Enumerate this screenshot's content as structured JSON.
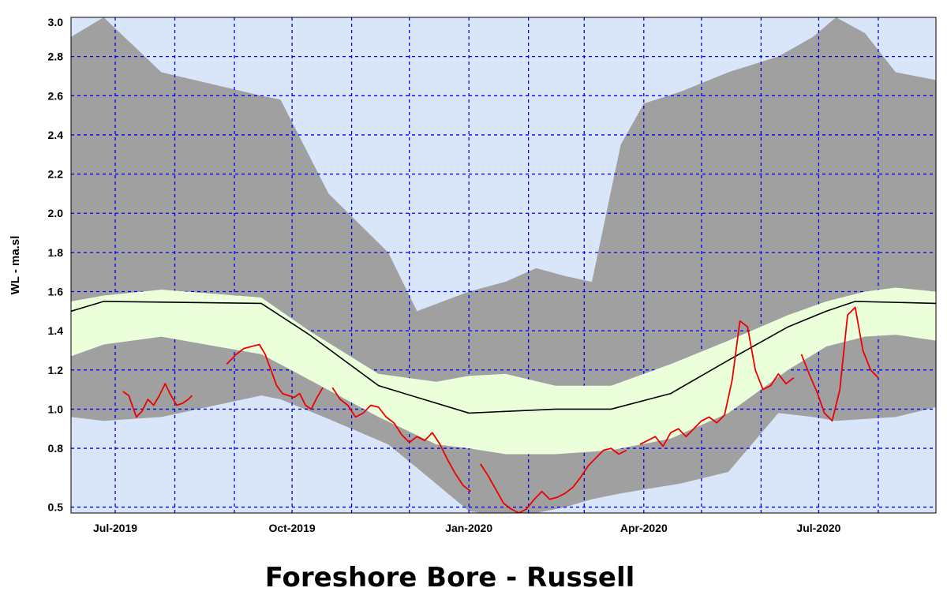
{
  "chart_data": {
    "type": "area",
    "title": "Foreshore Bore - Russell",
    "xlabel": "",
    "ylabel": "WL - ma.sl",
    "x_axis": {
      "type": "date",
      "min": "2019-06-08",
      "max": "2020-08-31",
      "tick_labels": [
        {
          "date": "2019-07-01",
          "label": "Jul-2019"
        },
        {
          "date": "2019-10-01",
          "label": "Oct-2019"
        },
        {
          "date": "2020-01-01",
          "label": "Jan-2020"
        },
        {
          "date": "2020-04-01",
          "label": "Apr-2020"
        },
        {
          "date": "2020-07-01",
          "label": "Jul-2020"
        }
      ],
      "grid_dates": [
        "2019-07-01",
        "2019-08-01",
        "2019-09-01",
        "2019-10-01",
        "2019-11-01",
        "2019-12-01",
        "2020-01-01",
        "2020-02-01",
        "2020-03-01",
        "2020-04-01",
        "2020-05-01",
        "2020-06-01",
        "2020-07-01",
        "2020-08-01"
      ]
    },
    "y_axis": {
      "min": 0.47,
      "max": 3.0,
      "ticks": [
        0.5,
        0.8,
        1.0,
        1.2,
        1.4,
        1.6,
        1.8,
        2.0,
        2.2,
        2.4,
        2.6,
        2.8,
        3.0
      ],
      "tick_labels": [
        "0.5",
        "0.8",
        "1.0",
        "1.2",
        "1.4",
        "1.6",
        "1.8",
        "2.0",
        "2.2",
        "2.4",
        "2.6",
        "2.8",
        "3.0"
      ],
      "grid": true
    },
    "colors": {
      "plot_background": "#d9e6fa",
      "grid": "#0000ee",
      "outer_band": "#a0a0a0",
      "inner_band": "#eaffda",
      "median_line": "#000000",
      "observed_line": "#ee0000"
    },
    "outer_band": {
      "dates": [
        "2019-06-08",
        "2019-06-25",
        "2019-07-25",
        "2019-09-15",
        "2019-09-25",
        "2019-10-20",
        "2019-11-20",
        "2019-12-05",
        "2020-01-01",
        "2020-01-20",
        "2020-02-05",
        "2020-02-20",
        "2020-03-05",
        "2020-03-20",
        "2020-04-01",
        "2020-04-20",
        "2020-05-15",
        "2020-06-10",
        "2020-06-28",
        "2020-07-10",
        "2020-07-25",
        "2020-08-10",
        "2020-08-31"
      ],
      "upper": [
        2.9,
        3.0,
        2.72,
        2.6,
        2.58,
        2.1,
        1.8,
        1.5,
        1.6,
        1.65,
        1.72,
        1.68,
        1.65,
        2.35,
        2.56,
        2.62,
        2.72,
        2.8,
        2.9,
        3.0,
        2.92,
        2.72,
        2.68
      ],
      "lower": [
        0.96,
        0.94,
        0.96,
        1.07,
        1.05,
        0.95,
        0.82,
        0.7,
        0.48,
        0.45,
        0.47,
        0.5,
        0.54,
        0.57,
        0.59,
        0.62,
        0.68,
        0.98,
        0.96,
        0.94,
        0.95,
        0.96,
        1.01
      ]
    },
    "inner_band": {
      "dates": [
        "2019-06-08",
        "2019-06-25",
        "2019-07-25",
        "2019-09-15",
        "2019-10-10",
        "2019-11-15",
        "2019-12-15",
        "2020-01-01",
        "2020-01-20",
        "2020-02-15",
        "2020-03-15",
        "2020-04-15",
        "2020-05-15",
        "2020-06-15",
        "2020-07-05",
        "2020-07-25",
        "2020-08-10",
        "2020-08-31"
      ],
      "upper": [
        1.55,
        1.58,
        1.61,
        1.57,
        1.4,
        1.18,
        1.14,
        1.17,
        1.18,
        1.12,
        1.12,
        1.23,
        1.35,
        1.48,
        1.55,
        1.6,
        1.62,
        1.6
      ],
      "lower": [
        1.27,
        1.33,
        1.37,
        1.28,
        1.15,
        0.96,
        0.82,
        0.8,
        0.77,
        0.77,
        0.79,
        0.85,
        0.98,
        1.2,
        1.32,
        1.37,
        1.38,
        1.35
      ]
    },
    "median_line": {
      "dates": [
        "2019-06-08",
        "2019-06-25",
        "2019-09-15",
        "2019-10-10",
        "2019-11-15",
        "2020-01-01",
        "2020-02-15",
        "2020-03-15",
        "2020-04-15",
        "2020-05-15",
        "2020-06-15",
        "2020-07-05",
        "2020-07-20",
        "2020-08-31"
      ],
      "values": [
        1.5,
        1.55,
        1.54,
        1.38,
        1.12,
        0.98,
        1.0,
        1.0,
        1.08,
        1.25,
        1.42,
        1.5,
        1.55,
        1.54
      ]
    },
    "observed": {
      "segments": [
        {
          "dates": [
            "2019-07-05",
            "2019-07-08",
            "2019-07-12",
            "2019-07-15",
            "2019-07-18",
            "2019-07-21",
            "2019-07-24",
            "2019-07-27",
            "2019-07-30",
            "2019-08-02",
            "2019-08-05",
            "2019-08-08",
            "2019-08-10"
          ],
          "values": [
            1.09,
            1.07,
            0.96,
            0.99,
            1.05,
            1.02,
            1.07,
            1.13,
            1.07,
            1.02,
            1.03,
            1.05,
            1.07
          ]
        },
        {
          "dates": [
            "2019-08-28",
            "2019-09-02",
            "2019-09-06",
            "2019-09-10",
            "2019-09-14",
            "2019-09-17",
            "2019-09-20",
            "2019-09-23",
            "2019-09-26",
            "2019-09-29",
            "2019-10-02",
            "2019-10-05",
            "2019-10-08",
            "2019-10-11",
            "2019-10-14",
            "2019-10-17"
          ],
          "values": [
            1.23,
            1.28,
            1.31,
            1.32,
            1.33,
            1.28,
            1.2,
            1.12,
            1.08,
            1.07,
            1.06,
            1.08,
            1.02,
            1.0,
            1.06,
            1.11
          ]
        },
        {
          "dates": [
            "2019-10-22",
            "2019-10-26",
            "2019-10-30",
            "2019-11-03",
            "2019-11-07",
            "2019-11-11",
            "2019-11-15",
            "2019-11-19",
            "2019-11-23",
            "2019-11-27",
            "2019-12-01",
            "2019-12-05",
            "2019-12-09",
            "2019-12-13",
            "2019-12-17",
            "2019-12-21",
            "2019-12-25",
            "2019-12-29",
            "2020-01-02"
          ],
          "values": [
            1.11,
            1.05,
            1.02,
            0.96,
            0.98,
            1.02,
            1.01,
            0.96,
            0.93,
            0.87,
            0.83,
            0.86,
            0.84,
            0.88,
            0.82,
            0.74,
            0.67,
            0.61,
            0.58
          ]
        },
        {
          "dates": [
            "2020-01-07",
            "2020-01-11",
            "2020-01-15",
            "2020-01-19",
            "2020-01-23",
            "2020-01-27",
            "2020-01-31",
            "2020-02-04",
            "2020-02-08",
            "2020-02-12",
            "2020-02-16",
            "2020-02-20",
            "2020-02-24",
            "2020-02-28",
            "2020-03-03",
            "2020-03-07",
            "2020-03-11",
            "2020-03-15",
            "2020-03-19",
            "2020-03-23"
          ],
          "values": [
            0.72,
            0.66,
            0.59,
            0.52,
            0.49,
            0.47,
            0.49,
            0.54,
            0.58,
            0.54,
            0.55,
            0.57,
            0.6,
            0.65,
            0.71,
            0.75,
            0.79,
            0.8,
            0.77,
            0.79
          ]
        },
        {
          "dates": [
            "2020-03-30",
            "2020-04-03",
            "2020-04-07",
            "2020-04-11",
            "2020-04-15",
            "2020-04-19",
            "2020-04-23",
            "2020-04-27",
            "2020-05-01",
            "2020-05-05",
            "2020-05-09",
            "2020-05-13",
            "2020-05-17",
            "2020-05-21",
            "2020-05-25",
            "2020-05-29",
            "2020-06-02",
            "2020-06-06",
            "2020-06-10",
            "2020-06-14",
            "2020-06-18"
          ],
          "values": [
            0.82,
            0.84,
            0.86,
            0.81,
            0.88,
            0.9,
            0.86,
            0.9,
            0.94,
            0.96,
            0.93,
            0.97,
            1.15,
            1.45,
            1.42,
            1.2,
            1.1,
            1.12,
            1.18,
            1.13,
            1.16
          ]
        },
        {
          "dates": [
            "2020-06-22",
            "2020-06-26",
            "2020-06-30",
            "2020-07-04",
            "2020-07-08",
            "2020-07-12",
            "2020-07-16",
            "2020-07-20",
            "2020-07-24",
            "2020-07-28",
            "2020-08-01"
          ],
          "values": [
            1.28,
            1.18,
            1.09,
            0.98,
            0.94,
            1.1,
            1.48,
            1.52,
            1.3,
            1.2,
            1.16
          ]
        }
      ]
    }
  }
}
